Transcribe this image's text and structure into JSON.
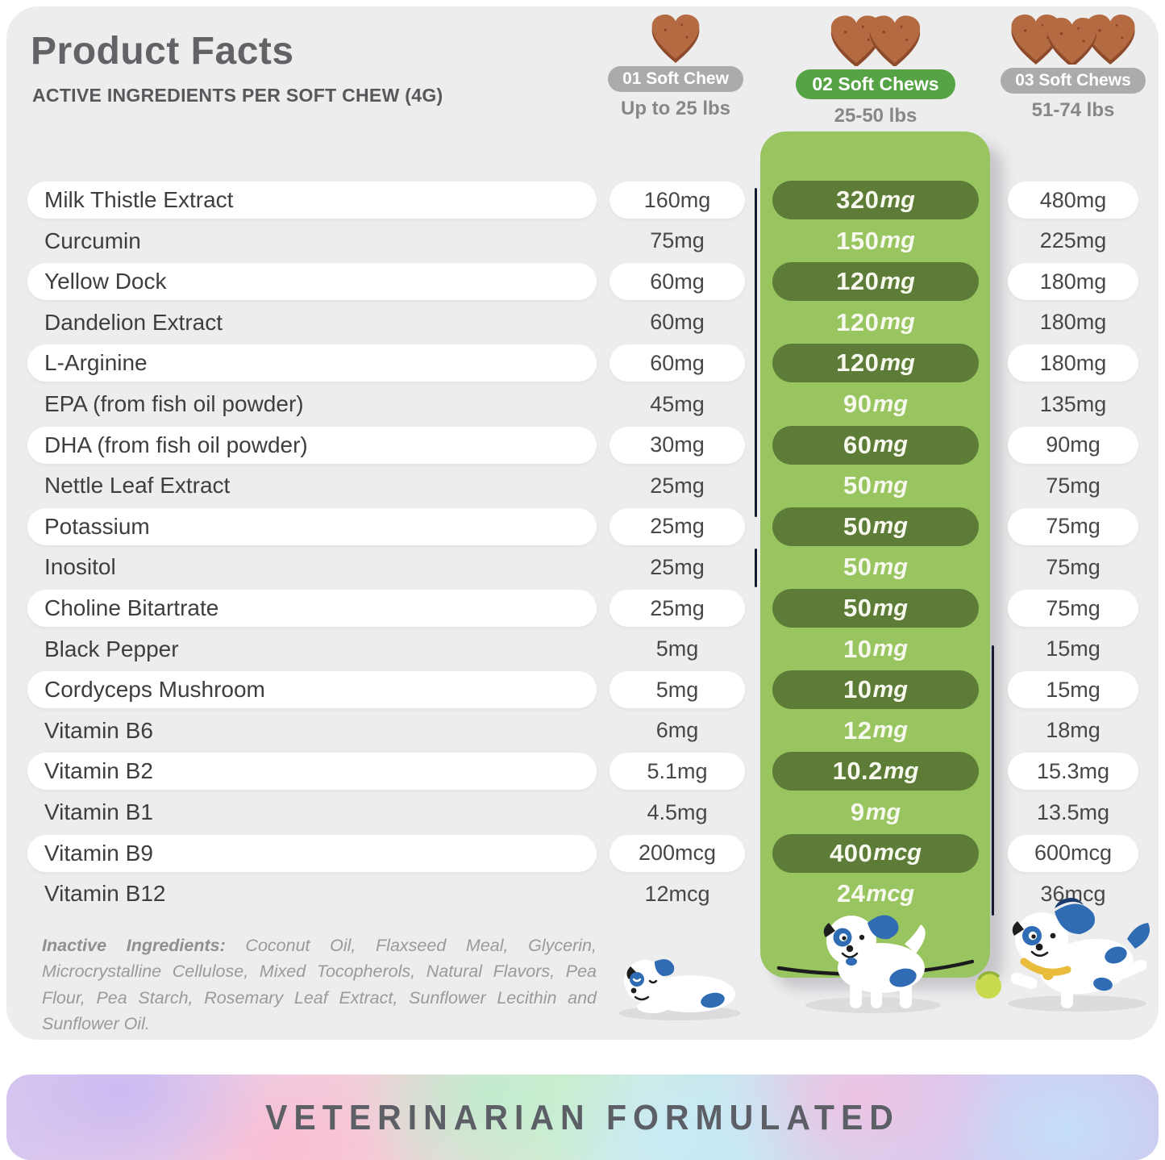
{
  "header": {
    "title": "Product Facts",
    "subtitle": "ACTIVE INGREDIENTS PER SOFT CHEW (4G)"
  },
  "columns": [
    {
      "badge": "01 Soft Chew",
      "weight": "Up to 25 lbs",
      "chew_count": 1,
      "badge_color": "#ababab"
    },
    {
      "badge": "02 Soft Chews",
      "weight": "25-50 lbs",
      "chew_count": 2,
      "badge_color": "#55a345"
    },
    {
      "badge": "03 Soft Chews",
      "weight": "51-74 lbs",
      "chew_count": 3,
      "badge_color": "#ababab"
    }
  ],
  "table": {
    "rows": [
      {
        "ingredient": "Milk Thistle Extract",
        "values": [
          "160mg",
          "320mg",
          "480mg"
        ]
      },
      {
        "ingredient": "Curcumin",
        "values": [
          "75mg",
          "150mg",
          "225mg"
        ]
      },
      {
        "ingredient": "Yellow Dock",
        "values": [
          "60mg",
          "120mg",
          "180mg"
        ]
      },
      {
        "ingredient": "Dandelion Extract",
        "values": [
          "60mg",
          "120mg",
          "180mg"
        ]
      },
      {
        "ingredient": "L-Arginine",
        "values": [
          "60mg",
          "120mg",
          "180mg"
        ]
      },
      {
        "ingredient": "EPA (from fish oil powder)",
        "values": [
          "45mg",
          "90mg",
          "135mg"
        ]
      },
      {
        "ingredient": "DHA (from fish oil powder)",
        "values": [
          "30mg",
          "60mg",
          "90mg"
        ]
      },
      {
        "ingredient": "Nettle Leaf Extract",
        "values": [
          "25mg",
          "50mg",
          "75mg"
        ]
      },
      {
        "ingredient": "Potassium",
        "values": [
          "25mg",
          "50mg",
          "75mg"
        ]
      },
      {
        "ingredient": "Inositol",
        "values": [
          "25mg",
          "50mg",
          "75mg"
        ]
      },
      {
        "ingredient": "Choline Bitartrate",
        "values": [
          "25mg",
          "50mg",
          "75mg"
        ]
      },
      {
        "ingredient": "Black Pepper",
        "values": [
          "5mg",
          "10mg",
          "15mg"
        ]
      },
      {
        "ingredient": "Cordyceps Mushroom",
        "values": [
          "5mg",
          "10mg",
          "15mg"
        ]
      },
      {
        "ingredient": "Vitamin B6",
        "values": [
          "6mg",
          "12mg",
          "18mg"
        ]
      },
      {
        "ingredient": "Vitamin B2",
        "values": [
          "5.1mg",
          "10.2mg",
          "15.3mg"
        ]
      },
      {
        "ingredient": "Vitamin B1",
        "values": [
          "4.5mg",
          "9mg",
          "13.5mg"
        ]
      },
      {
        "ingredient": "Vitamin B9",
        "values": [
          "200mcg",
          "400mcg",
          "600mcg"
        ]
      },
      {
        "ingredient": "Vitamin B12",
        "values": [
          "12mcg",
          "24mcg",
          "36mcg"
        ]
      }
    ]
  },
  "inactive": {
    "label": "Inactive Ingredients:",
    "text": " Coconut Oil, Flaxseed Meal, Glycerin, Microcrystalline Cellulose, Mixed Tocopherols, Natural Flavors, Pea Flour, Pea Starch, Rosemary Leaf Extract, Sunflower Lecithin and Sunflower Oil."
  },
  "banner": {
    "text": "VETERINARIAN FORMULATED"
  },
  "icons": {
    "chew-heart-icon": "heart-shaped brown soft chew",
    "puppy-lying-icon": "small white puppy lying down",
    "puppy-walking-icon": "medium white puppy walking",
    "puppy-running-icon": "large white puppy running with ball",
    "ball-icon": "yellow-green ball"
  },
  "colors": {
    "card_bg": "#ededee",
    "panel_green": "#98c55f",
    "pill_dark_green": "#5d7c37",
    "badge_gray": "#ababab",
    "badge_green": "#55a345",
    "chew_brown": "#b56b41",
    "chew_brown_dark": "#8e4b2b",
    "dog_blue": "#2f6cb3",
    "collar_yellow": "#e9bc3c",
    "banner_text": "#5d5f66"
  }
}
